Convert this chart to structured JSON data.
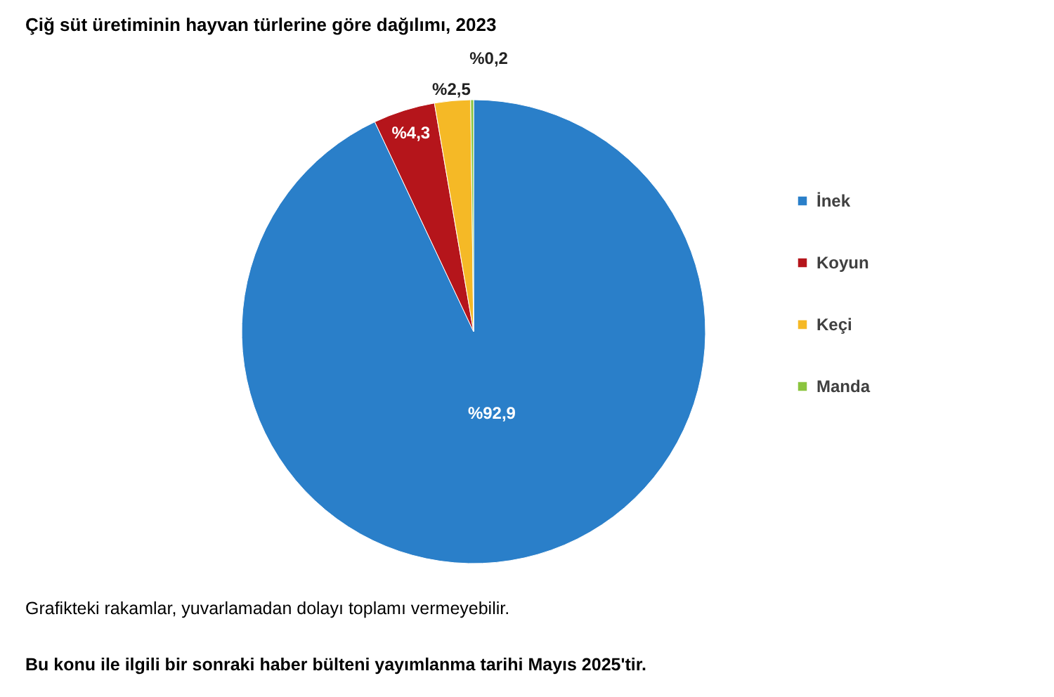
{
  "chart_data": {
    "type": "pie",
    "title": "Çiğ süt üretiminin hayvan türlerine göre dağılımı, 2023",
    "categories": [
      "İnek",
      "Koyun",
      "Keçi",
      "Manda"
    ],
    "values": [
      92.9,
      4.3,
      2.5,
      0.2
    ],
    "colors": [
      "#2a7fc9",
      "#b5151b",
      "#f5b926",
      "#8bc43f"
    ],
    "value_labels": [
      "%92,9",
      "%4,3",
      "%2,5",
      "%0,2"
    ],
    "legend": "right",
    "annotations": [
      "Grafikteki rakamlar, yuvarlamadan dolayı toplamı vermeyebilir.",
      "Bu konu ile ilgili bir sonraki haber bülteni yayımlanma tarihi Mayıs 2025'tir."
    ]
  }
}
